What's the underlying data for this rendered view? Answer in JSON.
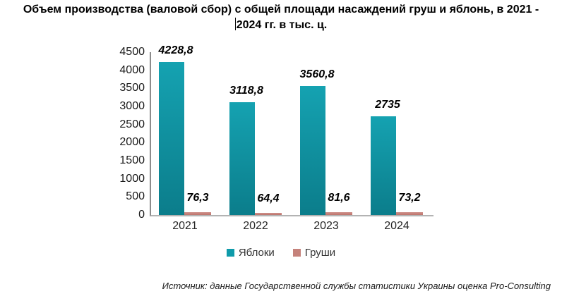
{
  "title": {
    "line1": "Объем производства (валовой сбор) с общей площади насаждений груш и яблонь, в 2021 -",
    "line2": "2024 гг. в тыс. ц."
  },
  "source": "Источник: данные Государственной службы статистики Украины оценка Pro-Consulting",
  "chart_data": {
    "type": "bar",
    "title": "Объем производства (валовой сбор) с общей площади насаждений груш и яблонь, в 2021 - 2024 гг. в тыс. ц.",
    "categories": [
      "2021",
      "2022",
      "2023",
      "2024"
    ],
    "series": [
      {
        "name": "Яблоки",
        "key": "apples",
        "values": [
          4228.8,
          3118.8,
          3560.8,
          2735
        ],
        "labels": [
          "4228,8",
          "3118,8",
          "3560,8",
          "2735"
        ],
        "color_top": "#15a2b1",
        "color_bottom": "#0b7d8b",
        "legend_color": "#0f9baa"
      },
      {
        "name": "Груши",
        "key": "pears",
        "values": [
          76.3,
          64.4,
          81.6,
          73.2
        ],
        "labels": [
          "76,3",
          "64,4",
          "81,6",
          "73,2"
        ],
        "color_top": "#ce9089",
        "color_bottom": "#be756d",
        "legend_color": "#c5827b"
      }
    ],
    "ylim": [
      0,
      4500
    ],
    "yticks": [
      "4500",
      "4000",
      "3500",
      "3000",
      "2500",
      "2000",
      "1500",
      "1000",
      "500",
      "0"
    ],
    "grid": false,
    "legend_position": "bottom"
  }
}
